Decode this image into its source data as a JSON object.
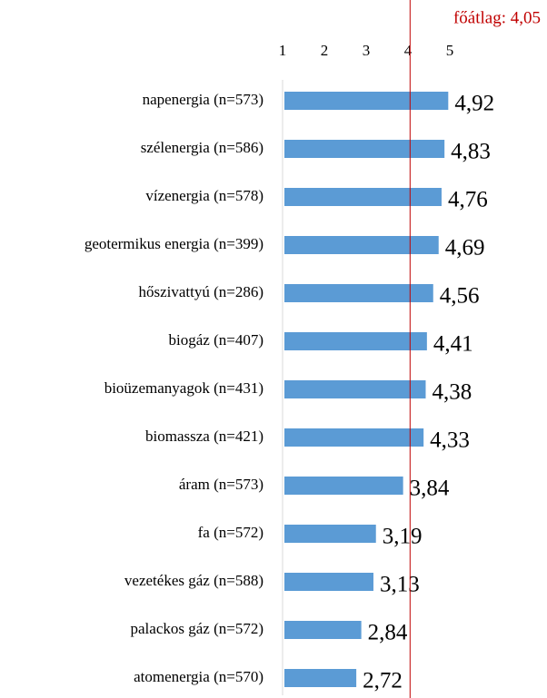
{
  "chart_data": {
    "type": "barh",
    "categories": [
      "napenergia (n=573)",
      "szélenergia (n=586)",
      "vízenergia (n=578)",
      "geotermikus energia (n=399)",
      "hőszivattyú (n=286)",
      "biogáz (n=407)",
      "bioüzemanyagok (n=431)",
      "biomassza (n=421)",
      "áram (n=573)",
      "fa (n=572)",
      "vezetékes gáz (n=588)",
      "palackos gáz (n=572)",
      "atomenergia (n=570)"
    ],
    "values": [
      4.92,
      4.83,
      4.76,
      4.69,
      4.56,
      4.41,
      4.38,
      4.33,
      3.84,
      3.19,
      3.13,
      2.84,
      2.72
    ],
    "value_labels": [
      "4,92",
      "4,83",
      "4,76",
      "4,69",
      "4,56",
      "4,41",
      "4,38",
      "4,33",
      "3,84",
      "3,19",
      "3,13",
      "2,84",
      "2,72"
    ],
    "color": "#5b9bd5",
    "xlim": [
      1,
      5
    ],
    "xticks": [
      1,
      2,
      3,
      4,
      5
    ],
    "reference_line": {
      "value": 4.05,
      "label": "főátlag: 4,05",
      "color": "#c00000"
    }
  }
}
